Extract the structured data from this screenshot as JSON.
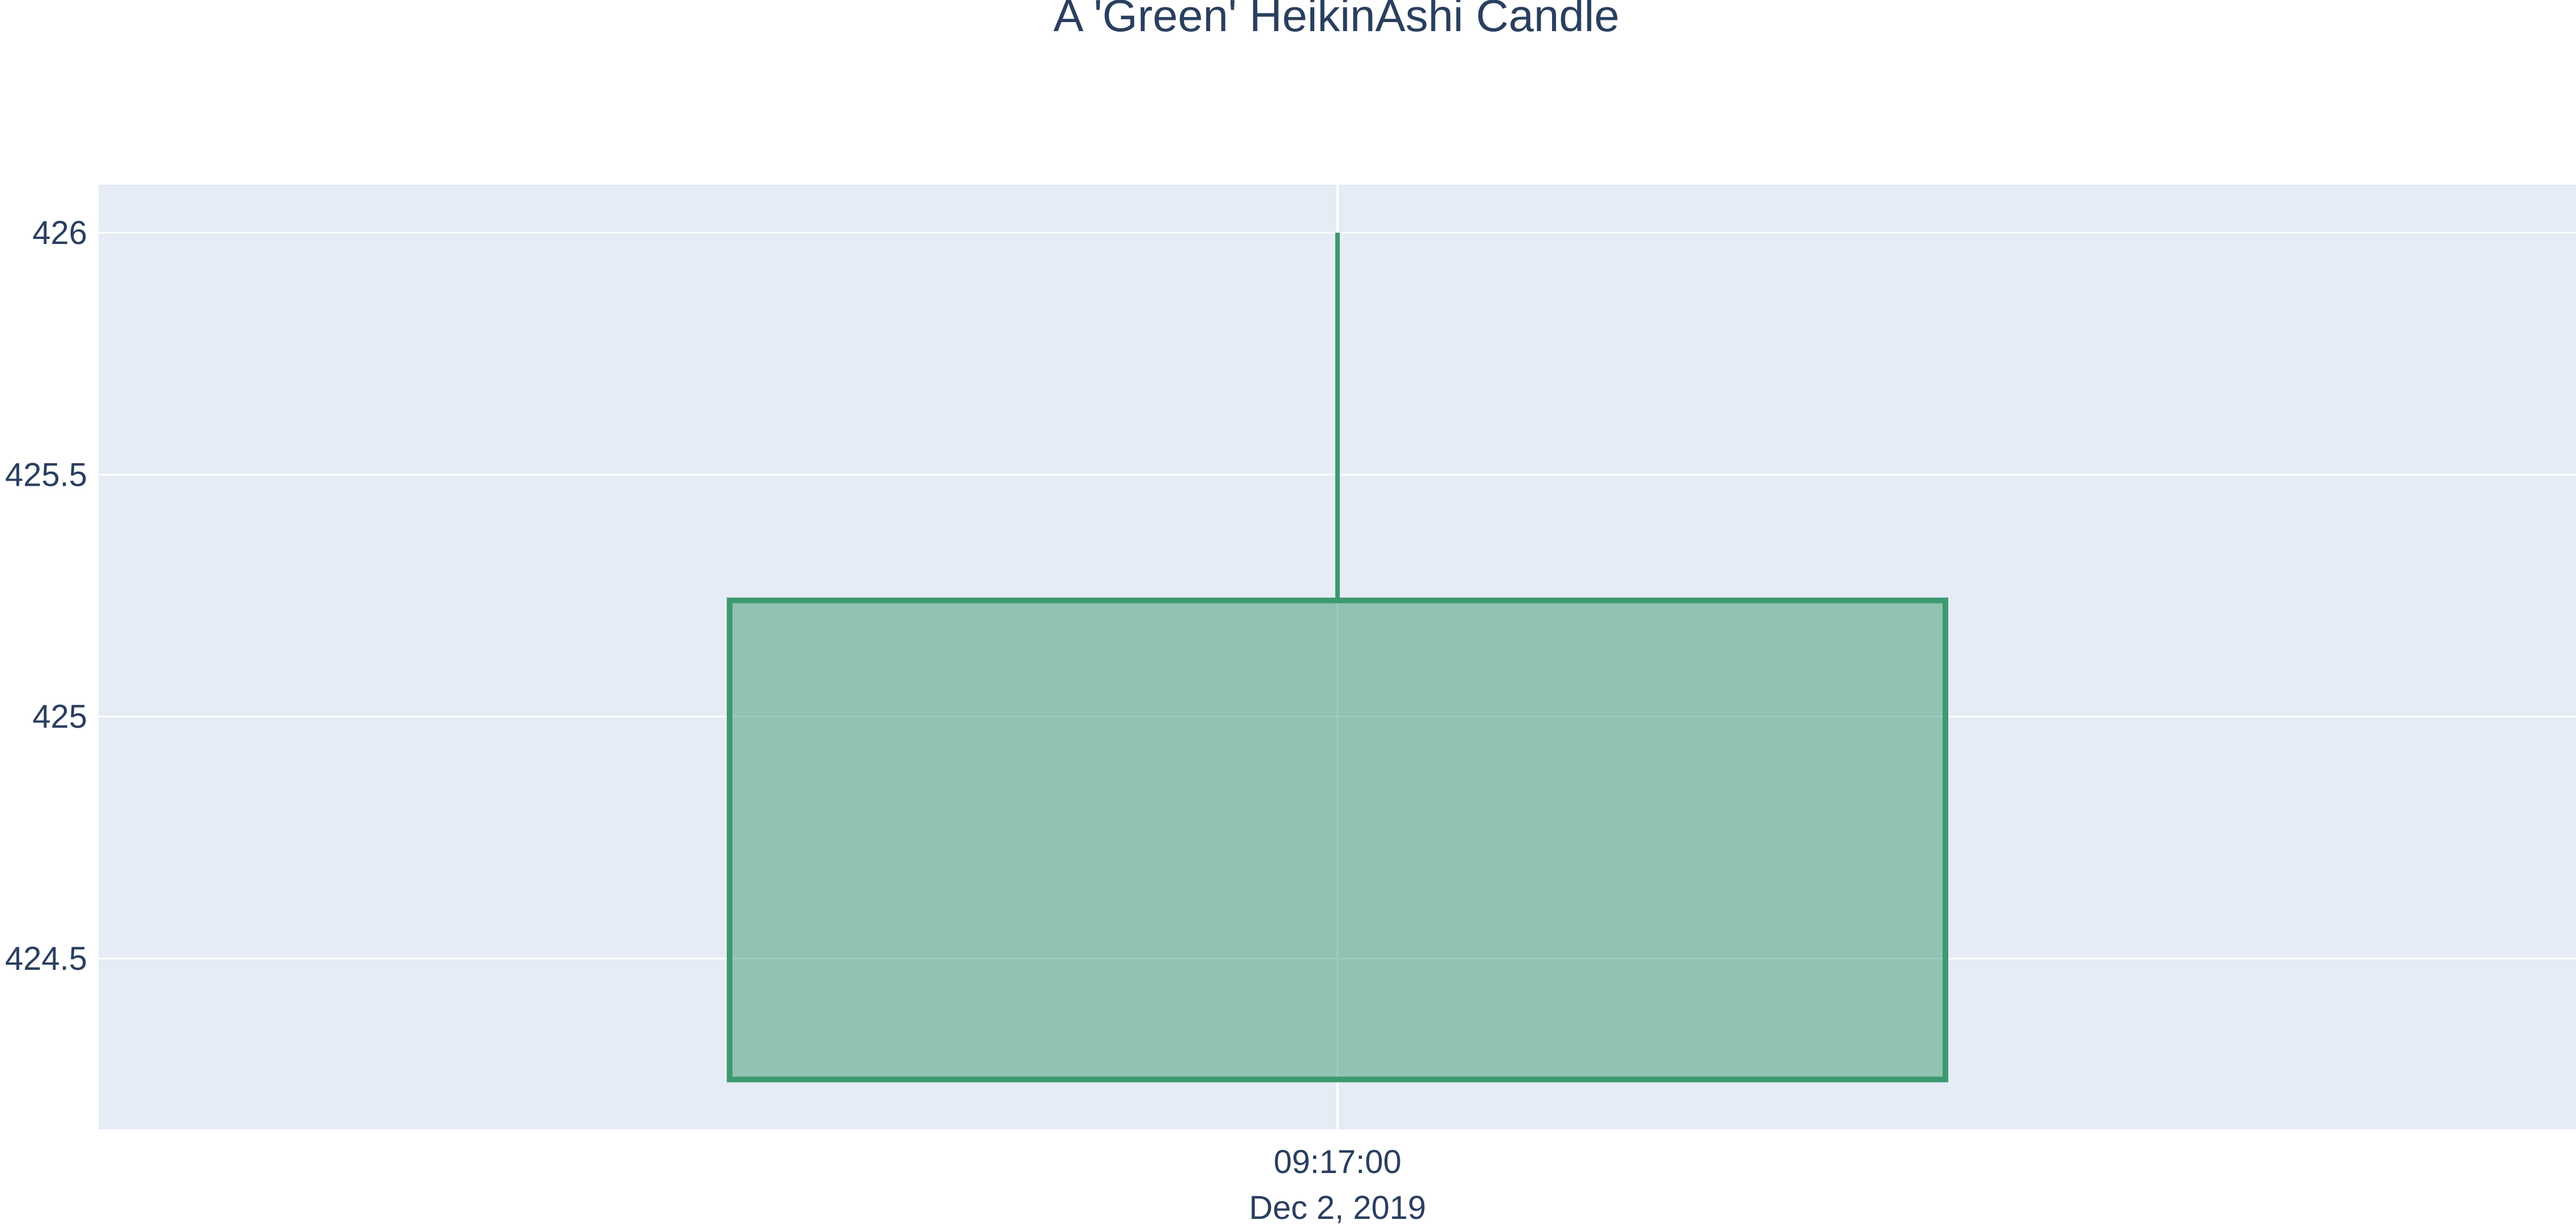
{
  "chart_data": {
    "type": "candlestick",
    "title": "A 'Green' HeikinAshi Candle",
    "xlabel": "",
    "ylabel": "",
    "ylim": [
      424.2,
      426.1
    ],
    "y_ticks": [
      424.5,
      425,
      425.5,
      426
    ],
    "y_tick_labels": [
      "424.5",
      "425",
      "425.5",
      "426"
    ],
    "x_tick_labels": [
      {
        "time": "09:17:00",
        "date": "Dec 2, 2019"
      }
    ],
    "grid": true,
    "legend": "none",
    "colors": {
      "increasing_line": "#3d9970",
      "increasing_fill": "rgba(61,153,112,0.5)",
      "plot_background": "#e5ecf6",
      "grid": "#ffffff",
      "text": "#2a3f5f"
    },
    "candles": [
      {
        "x": "Dec 2, 2019 09:17:00",
        "open": 424.25,
        "high": 426.0,
        "low": 424.25,
        "close": 425.24
      }
    ]
  }
}
